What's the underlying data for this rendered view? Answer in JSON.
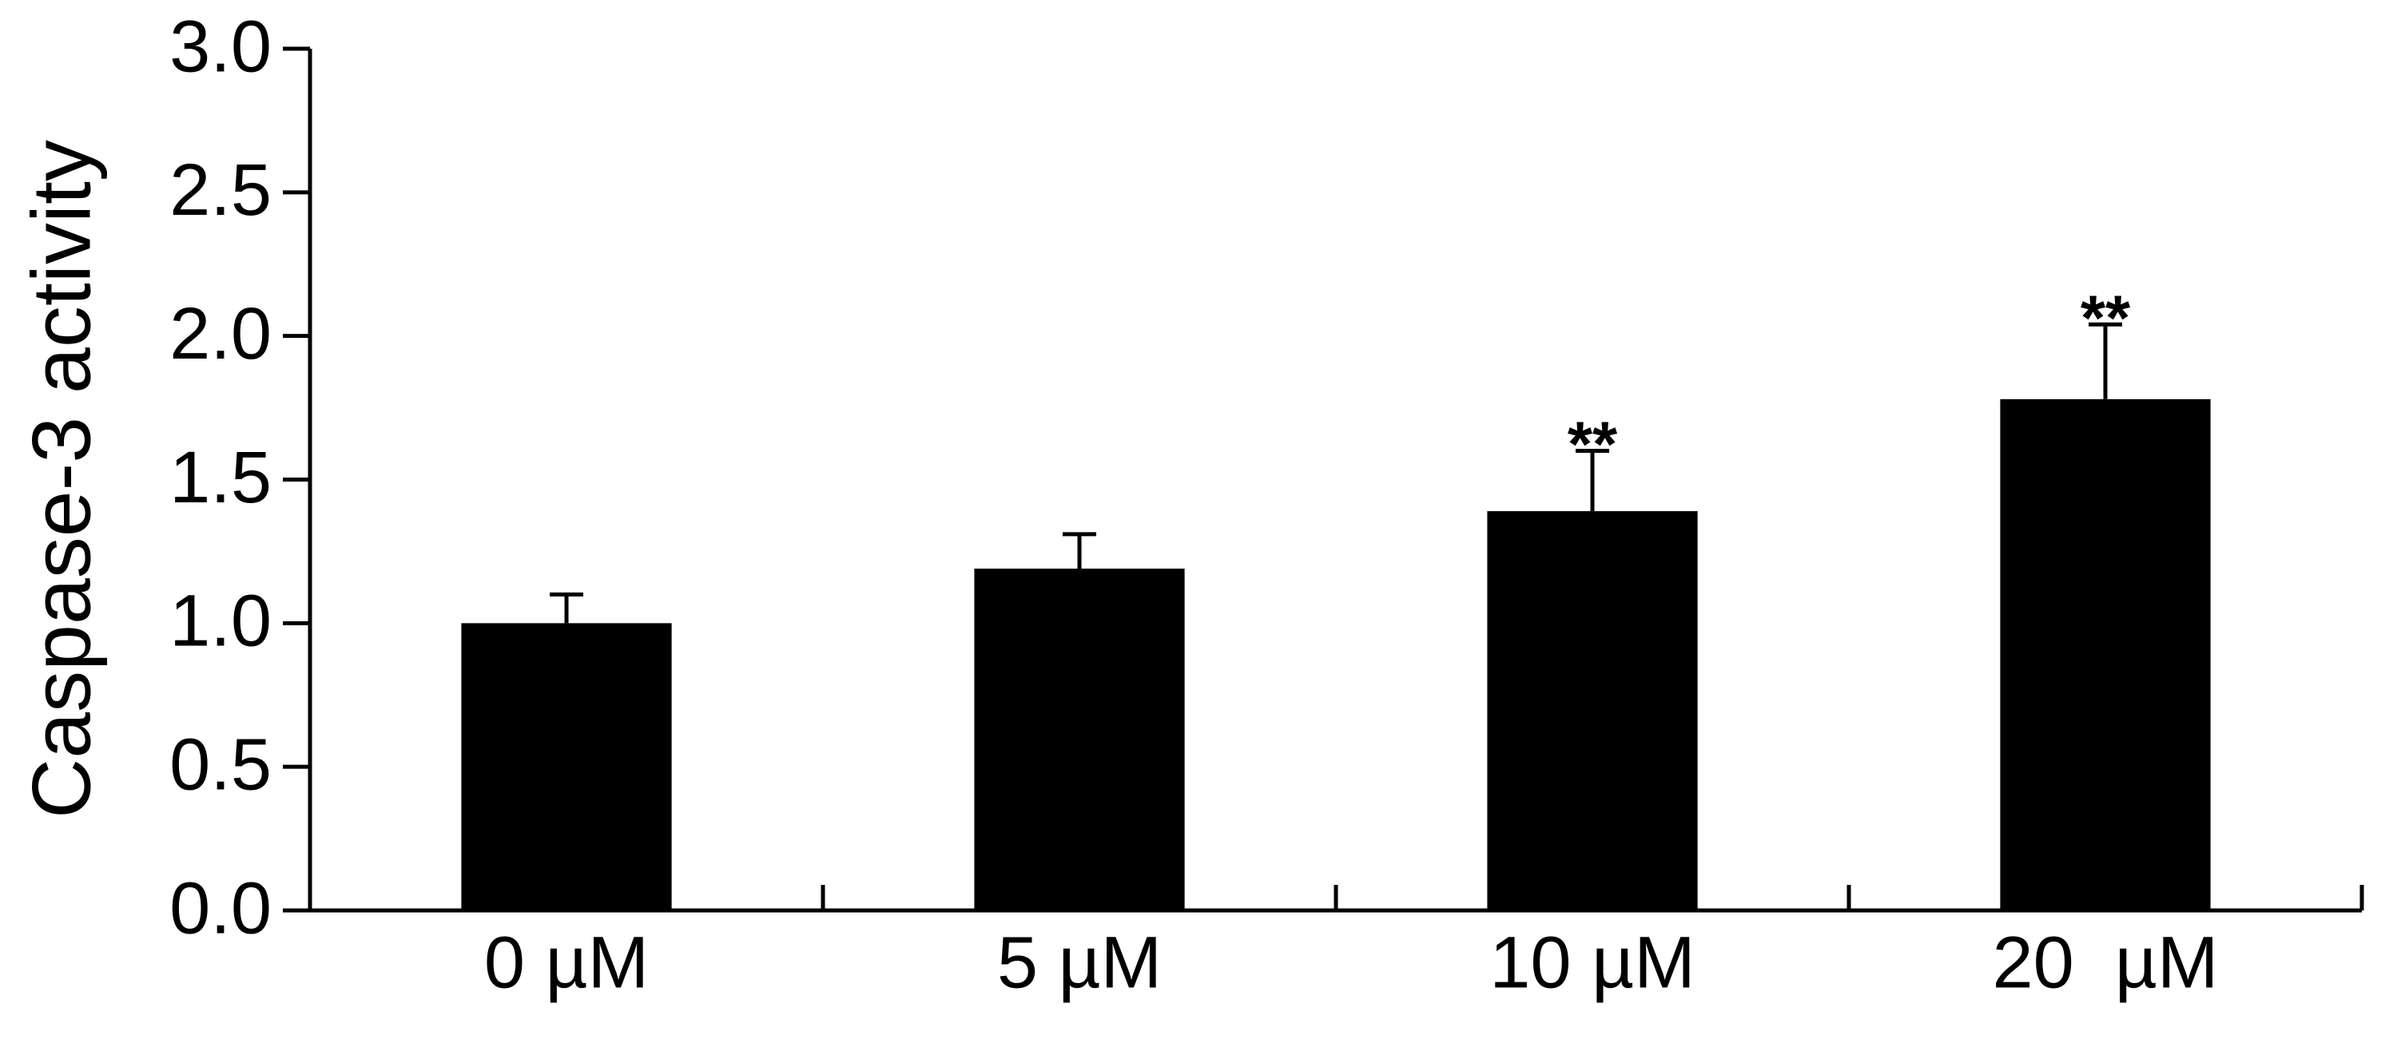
{
  "chart_data": {
    "type": "bar",
    "y_label": "Caspase-3 activity",
    "categories": [
      "0 µM",
      "5 µM",
      "10 µM",
      "20  µM"
    ],
    "values": [
      1.0,
      1.19,
      1.39,
      1.78
    ],
    "errors": [
      0.1,
      0.12,
      0.21,
      0.26
    ],
    "annotations": [
      null,
      null,
      "**",
      "**"
    ],
    "color": "#000000",
    "ylim": [
      0,
      3
    ],
    "yticks": [
      {
        "value": 0,
        "label": "0.0"
      },
      0.5,
      {
        "value": 1,
        "label": "1.0"
      },
      1.5,
      {
        "value": 2,
        "label": "2.0"
      },
      2.5,
      {
        "value": 3,
        "label": "3.0"
      }
    ]
  }
}
